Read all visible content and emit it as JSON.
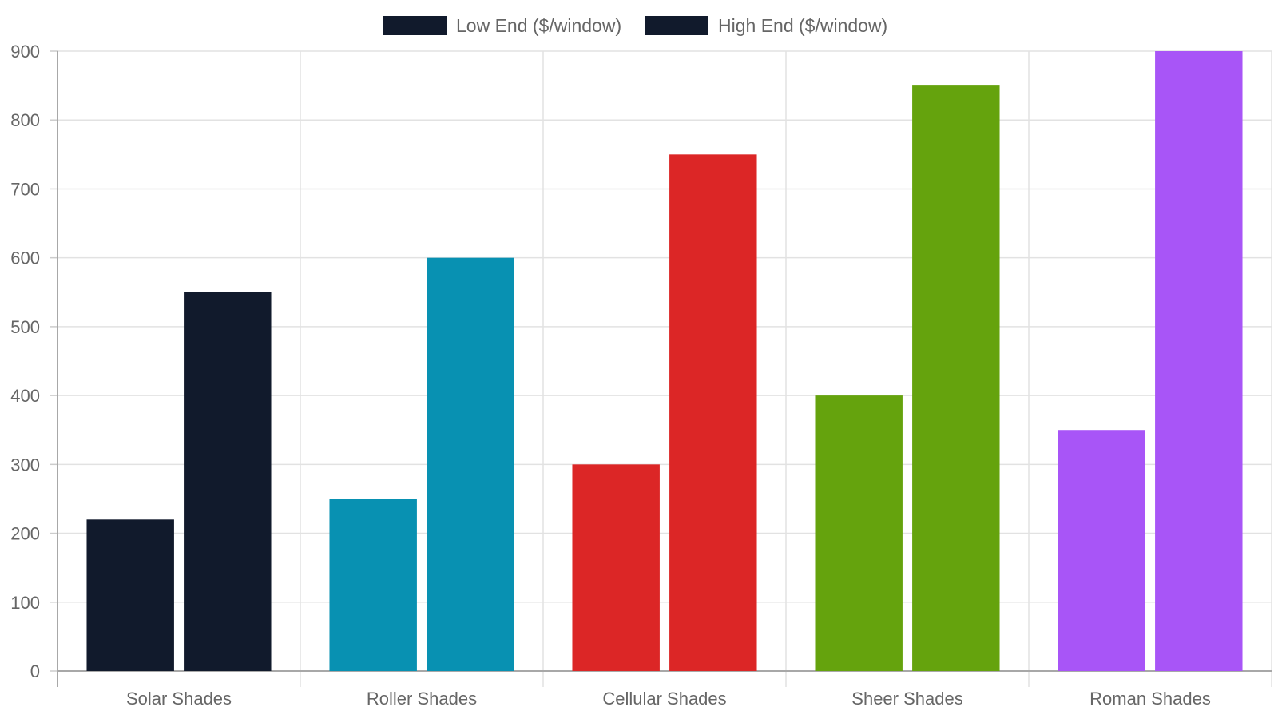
{
  "chart_data": {
    "type": "bar",
    "categories": [
      "Solar Shades",
      "Roller Shades",
      "Cellular Shades",
      "Sheer Shades",
      "Roman Shades"
    ],
    "series": [
      {
        "name": "Low End ($/window)",
        "values": [
          220,
          250,
          300,
          400,
          350
        ]
      },
      {
        "name": "High End ($/window)",
        "values": [
          550,
          600,
          750,
          850,
          900
        ]
      }
    ],
    "category_colors": [
      "#111a2c",
      "#0891b2",
      "#dc2626",
      "#65a30d",
      "#a855f7"
    ],
    "legend_color": "#111a2c",
    "ylim": [
      0,
      900
    ],
    "yticks": [
      0,
      100,
      200,
      300,
      400,
      500,
      600,
      700,
      800,
      900
    ],
    "grid": true,
    "legend_position": "top-center"
  }
}
